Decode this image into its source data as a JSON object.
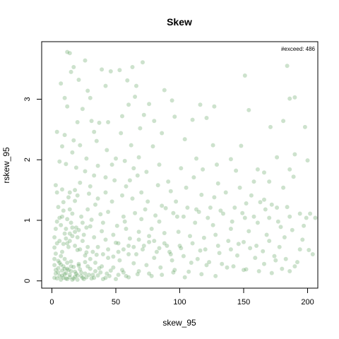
{
  "chart_data": {
    "type": "scatter",
    "title": "Skew",
    "xlabel": "skew_95",
    "ylabel": "rskew_95",
    "xlim": [
      -8,
      208
    ],
    "ylim": [
      -0.12,
      3.95
    ],
    "x_ticks": [
      0,
      50,
      100,
      150,
      200
    ],
    "y_ticks": [
      0,
      1,
      2,
      3
    ],
    "annotation": "#exceed: 486",
    "point_color": "#1a7a1a",
    "point_opacity": 0.22,
    "grid": false,
    "legend": "none",
    "points": [
      [
        14,
        3.76
      ],
      [
        12,
        3.78
      ],
      [
        26,
        3.64
      ],
      [
        71,
        3.61
      ],
      [
        63,
        3.53
      ],
      [
        184,
        3.55
      ],
      [
        17,
        3.53
      ],
      [
        15,
        3.45
      ],
      [
        39,
        3.49
      ],
      [
        46,
        3.46
      ],
      [
        53,
        3.48
      ],
      [
        151,
        3.39
      ],
      [
        59,
        3.31
      ],
      [
        66,
        3.22
      ],
      [
        21,
        3.32
      ],
      [
        7,
        3.26
      ],
      [
        10,
        3.02
      ],
      [
        28,
        3.14
      ],
      [
        65,
        3.04
      ],
      [
        88,
        3.15
      ],
      [
        186,
        3.01
      ],
      [
        190,
        3.03
      ],
      [
        12,
        2.88
      ],
      [
        24,
        2.84
      ],
      [
        31,
        2.64
      ],
      [
        37,
        2.61
      ],
      [
        60,
        2.91
      ],
      [
        72,
        2.74
      ],
      [
        80,
        2.64
      ],
      [
        96,
        2.71
      ],
      [
        116,
        2.91
      ],
      [
        121,
        2.69
      ],
      [
        154,
        2.82
      ],
      [
        181,
        2.64
      ],
      [
        198,
        2.54
      ],
      [
        171,
        2.54
      ],
      [
        4,
        2.46
      ],
      [
        10,
        2.41
      ],
      [
        17,
        2.32
      ],
      [
        22,
        2.24
      ],
      [
        35,
        2.31
      ],
      [
        43,
        2.16
      ],
      [
        54,
        2.44
      ],
      [
        62,
        2.24
      ],
      [
        79,
        2.22
      ],
      [
        104,
        2.34
      ],
      [
        126,
        2.24
      ],
      [
        148,
        2.23
      ],
      [
        176,
        2.04
      ],
      [
        190,
        2.09
      ],
      [
        200,
        1.99
      ],
      [
        140,
        2.01
      ],
      [
        161,
        1.84
      ],
      [
        166,
        1.79
      ],
      [
        186,
        1.84
      ],
      [
        181,
        1.54
      ],
      [
        6,
        1.97
      ],
      [
        11,
        1.93
      ],
      [
        19,
        1.87
      ],
      [
        26,
        1.81
      ],
      [
        33,
        1.74
      ],
      [
        42,
        1.71
      ],
      [
        49,
        1.66
      ],
      [
        67,
        1.74
      ],
      [
        91,
        1.64
      ],
      [
        111,
        1.71
      ],
      [
        118,
        1.84
      ],
      [
        130,
        1.61
      ],
      [
        147,
        1.54
      ],
      [
        156,
        1.41
      ],
      [
        166,
        1.34
      ],
      [
        176,
        1.21
      ],
      [
        194,
        1.11
      ],
      [
        202,
        1.11
      ],
      [
        206,
        1.04
      ],
      [
        3,
        1.58
      ],
      [
        8,
        1.51
      ],
      [
        14,
        1.46
      ],
      [
        20,
        1.41
      ],
      [
        29,
        1.44
      ],
      [
        36,
        1.36
      ],
      [
        47,
        1.31
      ],
      [
        55,
        1.41
      ],
      [
        63,
        1.36
      ],
      [
        75,
        1.31
      ],
      [
        86,
        1.24
      ],
      [
        97,
        1.31
      ],
      [
        106,
        1.21
      ],
      [
        115,
        1.14
      ],
      [
        124,
        1.21
      ],
      [
        134,
        1.11
      ],
      [
        143,
        1.21
      ],
      [
        151,
        1.04
      ],
      [
        161,
        0.96
      ],
      [
        170,
        1.04
      ],
      [
        179,
        0.89
      ],
      [
        188,
        0.84
      ],
      [
        197,
        0.91
      ],
      [
        201,
        0.51
      ],
      [
        5,
        1.22
      ],
      [
        9,
        1.16
      ],
      [
        16,
        1.11
      ],
      [
        23,
        1.06
      ],
      [
        31,
        1.01
      ],
      [
        40,
        0.96
      ],
      [
        51,
        0.91
      ],
      [
        58,
        0.86
      ],
      [
        68,
        0.81
      ],
      [
        78,
        0.86
      ],
      [
        88,
        0.79
      ],
      [
        99,
        0.81
      ],
      [
        108,
        0.74
      ],
      [
        119,
        0.71
      ],
      [
        128,
        0.76
      ],
      [
        138,
        0.66
      ],
      [
        146,
        0.61
      ],
      [
        155,
        0.54
      ],
      [
        165,
        0.49
      ],
      [
        174,
        0.41
      ],
      [
        183,
        0.36
      ],
      [
        192,
        0.31
      ],
      [
        186,
        0.16
      ],
      [
        4,
        0.98
      ],
      [
        7,
        0.92
      ],
      [
        11,
        0.86
      ],
      [
        18,
        0.81
      ],
      [
        25,
        0.76
      ],
      [
        33,
        0.72
      ],
      [
        42,
        0.68
      ],
      [
        50,
        0.63
      ],
      [
        60,
        0.58
      ],
      [
        71,
        0.52
      ],
      [
        82,
        0.48
      ],
      [
        93,
        0.44
      ],
      [
        103,
        0.41
      ],
      [
        114,
        0.36
      ],
      [
        123,
        0.31
      ],
      [
        133,
        0.28
      ],
      [
        142,
        0.24
      ],
      [
        152,
        0.19
      ],
      [
        162,
        0.16
      ],
      [
        172,
        0.13
      ],
      [
        2,
        0.72
      ],
      [
        6,
        0.66
      ],
      [
        9,
        0.61
      ],
      [
        13,
        0.56
      ],
      [
        20,
        0.51
      ],
      [
        27,
        0.47
      ],
      [
        35,
        0.43
      ],
      [
        44,
        0.38
      ],
      [
        53,
        0.34
      ],
      [
        64,
        0.29
      ],
      [
        74,
        0.26
      ],
      [
        85,
        0.22
      ],
      [
        96,
        0.18
      ],
      [
        107,
        0.15
      ],
      [
        117,
        0.11
      ],
      [
        128,
        0.08
      ],
      [
        3,
        0.45
      ],
      [
        7,
        0.41
      ],
      [
        10,
        0.36
      ],
      [
        15,
        0.32
      ],
      [
        21,
        0.28
      ],
      [
        28,
        0.24
      ],
      [
        37,
        0.21
      ],
      [
        46,
        0.17
      ],
      [
        56,
        0.14
      ],
      [
        67,
        0.11
      ],
      [
        78,
        0.08
      ],
      [
        2,
        0.26
      ],
      [
        5,
        0.21
      ],
      [
        8,
        0.17
      ],
      [
        11,
        0.13
      ],
      [
        14,
        0.1
      ],
      [
        18,
        0.07
      ],
      [
        24,
        0.05
      ],
      [
        31,
        0.04
      ],
      [
        40,
        0.03
      ],
      [
        3,
        0.12
      ],
      [
        6,
        0.08
      ],
      [
        9,
        0.05
      ],
      [
        12,
        0.03
      ],
      [
        16,
        0.02
      ],
      [
        20,
        0.09
      ],
      [
        26,
        0.12
      ],
      [
        34,
        0.16
      ],
      [
        4,
        0.04
      ],
      [
        7,
        0.02
      ],
      [
        10,
        0.11
      ],
      [
        13,
        0.18
      ],
      [
        17,
        0.23
      ],
      [
        22,
        0.19
      ],
      [
        5,
        0.33
      ],
      [
        8,
        0.48
      ],
      [
        12,
        0.62
      ],
      [
        16,
        0.74
      ],
      [
        19,
        0.88
      ],
      [
        24,
        0.96
      ],
      [
        6,
        1.04
      ],
      [
        9,
        1.3
      ],
      [
        13,
        1.38
      ],
      [
        18,
        1.5
      ],
      [
        22,
        1.62
      ],
      [
        28,
        1.18
      ],
      [
        34,
        1.26
      ],
      [
        44,
        1.14
      ],
      [
        56,
        1.06
      ],
      [
        70,
        1.02
      ],
      [
        84,
        0.98
      ],
      [
        98,
        1.06
      ],
      [
        112,
        0.96
      ],
      [
        126,
        0.92
      ],
      [
        140,
        0.86
      ],
      [
        154,
        0.82
      ],
      [
        168,
        0.76
      ],
      [
        182,
        0.72
      ],
      [
        196,
        0.68
      ],
      [
        204,
        0.44
      ],
      [
        3,
        0.86
      ],
      [
        15,
        0.96
      ],
      [
        27,
        0.88
      ],
      [
        39,
        0.82
      ],
      [
        48,
        0.76
      ],
      [
        61,
        0.7
      ],
      [
        76,
        0.64
      ],
      [
        90,
        0.58
      ],
      [
        101,
        0.54
      ],
      [
        116,
        0.5
      ],
      [
        131,
        0.46
      ],
      [
        145,
        0.42
      ],
      [
        159,
        0.38
      ],
      [
        175,
        0.34
      ],
      [
        190,
        0.24
      ],
      [
        2,
        0.55
      ],
      [
        4,
        0.62
      ],
      [
        11,
        0.7
      ],
      [
        14,
        0.78
      ],
      [
        21,
        0.84
      ],
      [
        30,
        0.9
      ],
      [
        38,
        1.1
      ],
      [
        52,
        0.48
      ],
      [
        66,
        0.44
      ],
      [
        80,
        0.38
      ],
      [
        94,
        0.34
      ],
      [
        109,
        0.3
      ],
      [
        121,
        0.26
      ],
      [
        137,
        0.22
      ],
      [
        150,
        0.18
      ],
      [
        166,
        0.28
      ],
      [
        180,
        0.2
      ],
      [
        2,
        0.36
      ],
      [
        6,
        0.3
      ],
      [
        9,
        0.24
      ],
      [
        12,
        0.2
      ],
      [
        15,
        0.16
      ],
      [
        19,
        0.12
      ],
      [
        23,
        0.08
      ],
      [
        27,
        0.06
      ],
      [
        32,
        0.1
      ],
      [
        38,
        0.14
      ],
      [
        45,
        0.08
      ],
      [
        52,
        0.1
      ],
      [
        60,
        0.06
      ],
      [
        68,
        0.16
      ],
      [
        76,
        0.12
      ],
      [
        86,
        0.1
      ],
      [
        95,
        0.14
      ],
      [
        104,
        0.06
      ],
      [
        2,
        0.05
      ],
      [
        3,
        0.18
      ],
      [
        5,
        0.14
      ],
      [
        7,
        0.27
      ],
      [
        8,
        0.09
      ],
      [
        10,
        0.2
      ],
      [
        11,
        0.04
      ],
      [
        12,
        0.3
      ],
      [
        14,
        0.06
      ],
      [
        15,
        0.24
      ],
      [
        17,
        0.04
      ],
      [
        18,
        0.15
      ],
      [
        20,
        0.02
      ],
      [
        21,
        0.25
      ],
      [
        23,
        0.14
      ],
      [
        25,
        0.03
      ],
      [
        26,
        0.31
      ],
      [
        29,
        0.1
      ],
      [
        30,
        0.2
      ],
      [
        33,
        0.05
      ],
      [
        36,
        0.09
      ],
      [
        39,
        0.24
      ],
      [
        42,
        0.05
      ],
      [
        43,
        0.12
      ],
      [
        48,
        0.22
      ],
      [
        50,
        0.03
      ],
      [
        55,
        0.18
      ],
      [
        58,
        0.08
      ],
      [
        4,
        1.46
      ],
      [
        8,
        1.06
      ],
      [
        10,
        0.78
      ],
      [
        12,
        1.02
      ],
      [
        14,
        0.66
      ],
      [
        16,
        0.88
      ],
      [
        18,
        0.58
      ],
      [
        20,
        0.72
      ],
      [
        22,
        0.52
      ],
      [
        24,
        0.66
      ],
      [
        26,
        0.42
      ],
      [
        28,
        0.56
      ],
      [
        30,
        0.36
      ],
      [
        32,
        0.48
      ],
      [
        34,
        0.3
      ],
      [
        36,
        0.56
      ],
      [
        40,
        0.44
      ],
      [
        44,
        0.52
      ],
      [
        48,
        0.4
      ],
      [
        52,
        0.62
      ],
      [
        56,
        0.52
      ],
      [
        60,
        0.44
      ],
      [
        64,
        0.56
      ],
      [
        68,
        0.68
      ],
      [
        72,
        0.58
      ],
      [
        76,
        0.74
      ],
      [
        80,
        0.66
      ],
      [
        84,
        0.54
      ],
      [
        88,
        0.62
      ],
      [
        92,
        0.48
      ],
      [
        100,
        0.58
      ],
      [
        110,
        0.62
      ],
      [
        120,
        0.52
      ],
      [
        130,
        0.58
      ],
      [
        140,
        0.52
      ],
      [
        150,
        0.64
      ],
      [
        160,
        0.58
      ],
      [
        170,
        0.66
      ],
      [
        178,
        0.56
      ],
      [
        194,
        0.52
      ],
      [
        57,
        0.98
      ],
      [
        65,
        1.12
      ],
      [
        73,
        1.18
      ],
      [
        81,
        1.08
      ],
      [
        89,
        1.2
      ],
      [
        95,
        1.12
      ],
      [
        103,
        1.06
      ],
      [
        113,
        1.18
      ],
      [
        122,
        1.04
      ],
      [
        132,
        1.16
      ],
      [
        141,
        0.98
      ],
      [
        149,
        1.12
      ],
      [
        158,
        1.06
      ],
      [
        167,
        1.18
      ],
      [
        177,
        0.98
      ],
      [
        186,
        1.06
      ],
      [
        199,
        1.04
      ],
      [
        61,
        1.66
      ],
      [
        70,
        1.46
      ],
      [
        83,
        1.58
      ],
      [
        93,
        1.48
      ],
      [
        105,
        1.54
      ],
      [
        117,
        1.42
      ],
      [
        127,
        1.38
      ],
      [
        136,
        1.46
      ],
      [
        152,
        1.28
      ],
      [
        163,
        1.3
      ],
      [
        172,
        1.26
      ],
      [
        184,
        1.22
      ],
      [
        47,
        1.92
      ],
      [
        57,
        1.98
      ],
      [
        68,
        2.04
      ],
      [
        84,
        1.92
      ],
      [
        101,
        1.86
      ],
      [
        113,
        2.02
      ],
      [
        129,
        1.92
      ],
      [
        144,
        1.82
      ],
      [
        158,
        1.64
      ],
      [
        27,
        2.02
      ],
      [
        33,
        2.46
      ],
      [
        44,
        2.62
      ],
      [
        55,
        2.72
      ],
      [
        69,
        2.52
      ],
      [
        86,
        2.44
      ],
      [
        76,
        2.92
      ],
      [
        94,
        2.98
      ],
      [
        110,
        2.66
      ],
      [
        127,
        2.88
      ],
      [
        170,
        1.64
      ],
      [
        189,
        1.72
      ],
      [
        16,
        2.12
      ],
      [
        20,
        2.62
      ],
      [
        8,
        2.22
      ],
      [
        30,
        3.02
      ],
      [
        42,
        3.22
      ],
      [
        50,
        2.02
      ],
      [
        58,
        1.56
      ],
      [
        64,
        1.86
      ],
      [
        74,
        1.8
      ],
      [
        14,
        1.18
      ],
      [
        18,
        1.32
      ],
      [
        30,
        1.56
      ],
      [
        36,
        1.9
      ],
      [
        42,
        1.46
      ]
    ]
  }
}
